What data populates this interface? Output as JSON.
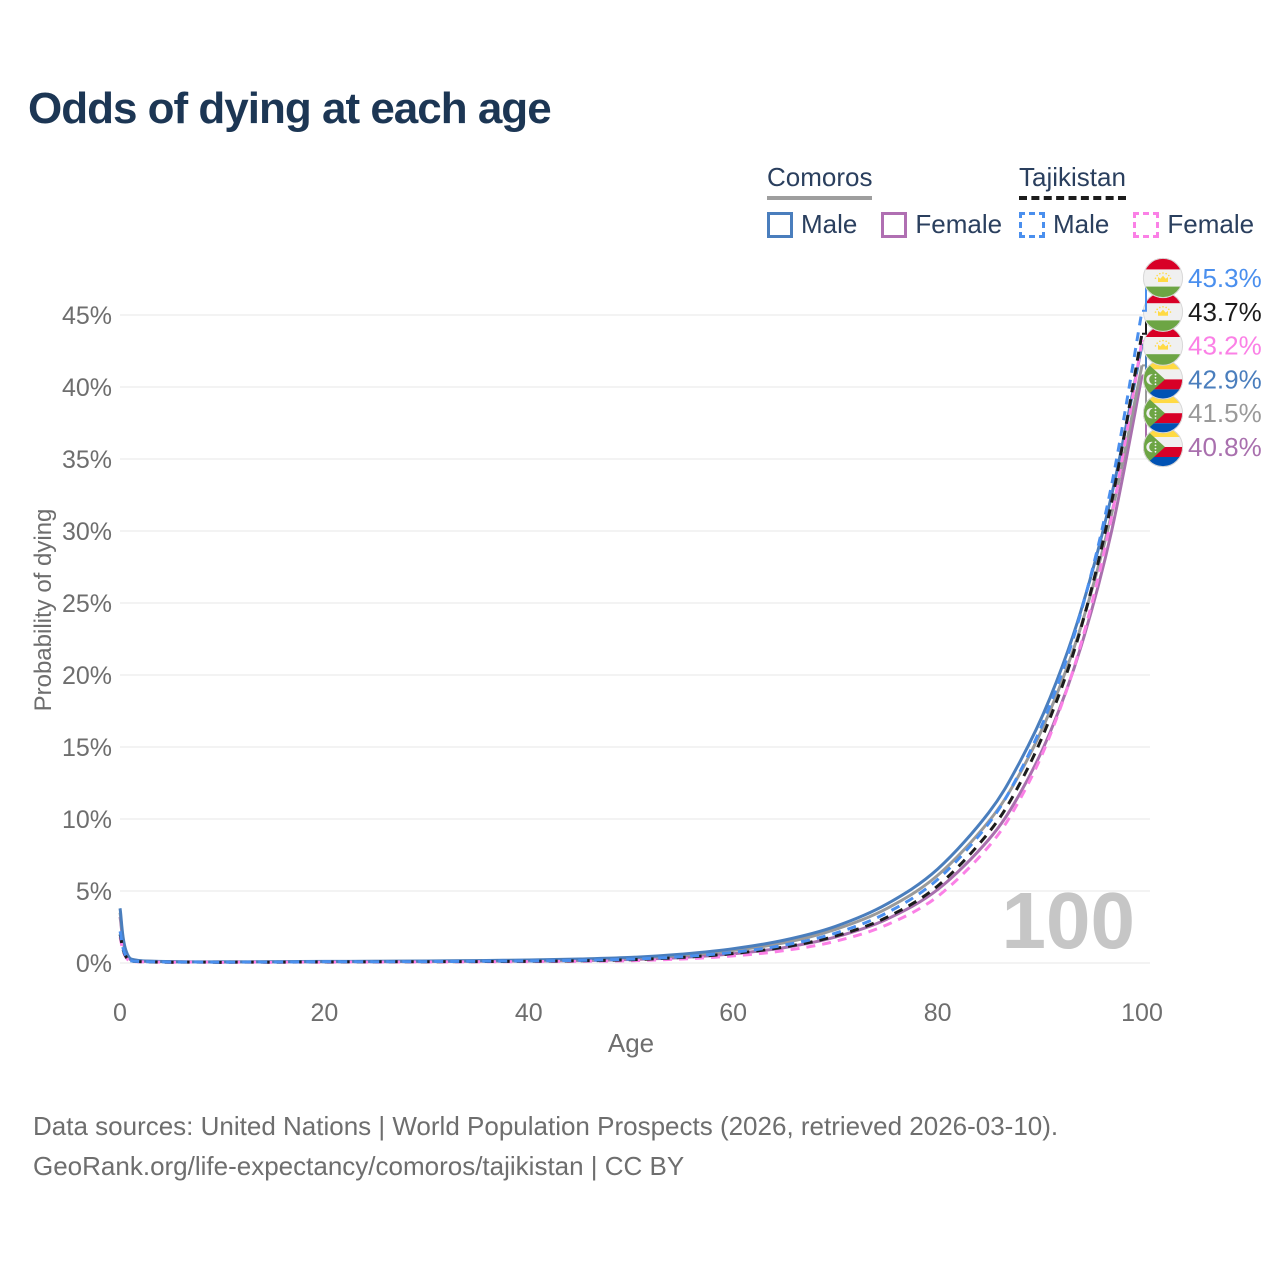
{
  "page": {
    "title": "Odds of dying at each age",
    "background": "#ffffff"
  },
  "legend": {
    "groups": [
      {
        "country": "Comoros",
        "line_style": "solid",
        "underline_color": "#9e9e9e",
        "items": [
          {
            "label": "Male",
            "color": "#4a7ebd"
          },
          {
            "label": "Female",
            "color": "#b06fb2"
          }
        ]
      },
      {
        "country": "Tajikistan",
        "line_style": "dashed",
        "underline_color": "#1c1c1c",
        "items": [
          {
            "label": "Male",
            "color": "#4a8fee"
          },
          {
            "label": "Female",
            "color": "#fb80e6"
          }
        ]
      }
    ]
  },
  "chart_data": {
    "type": "line",
    "title": "Odds of dying at each age",
    "xlabel": "Age",
    "ylabel": "Probability of dying",
    "xlim": [
      0,
      100
    ],
    "ylim": [
      0,
      47
    ],
    "xticks": [
      0,
      20,
      40,
      60,
      80,
      100
    ],
    "yticks": [
      0,
      5,
      10,
      15,
      20,
      25,
      30,
      35,
      40,
      45
    ],
    "ytick_suffix": "%",
    "grid": true,
    "legend_position": "top-right",
    "hover_age_label": "100",
    "series": [
      {
        "name": "Tajikistan — Male",
        "country": "Tajikistan",
        "sex": "Male",
        "color": "#4a8fee",
        "dashed": true,
        "flag": "tajikistan",
        "end_label": "45.3%",
        "end_value": 45.3,
        "points": [
          [
            0,
            2.2
          ],
          [
            1,
            0.16
          ],
          [
            5,
            0.06
          ],
          [
            10,
            0.05
          ],
          [
            15,
            0.06
          ],
          [
            20,
            0.08
          ],
          [
            25,
            0.09
          ],
          [
            30,
            0.1
          ],
          [
            35,
            0.12
          ],
          [
            40,
            0.14
          ],
          [
            45,
            0.18
          ],
          [
            50,
            0.27
          ],
          [
            55,
            0.44
          ],
          [
            60,
            0.74
          ],
          [
            65,
            1.24
          ],
          [
            70,
            2.07
          ],
          [
            75,
            3.47
          ],
          [
            80,
            5.8
          ],
          [
            85,
            9.69
          ],
          [
            88,
            13.2
          ],
          [
            91,
            17.9
          ],
          [
            94,
            24.3
          ],
          [
            97,
            33.1
          ],
          [
            100,
            45.3
          ]
        ]
      },
      {
        "name": "Tajikistan — Both sexes",
        "country": "Tajikistan",
        "sex": "Both",
        "color": "#1c1c1c",
        "dashed": true,
        "flag": "tajikistan",
        "end_label": "43.7%",
        "end_value": 43.7,
        "points": [
          [
            0,
            2.0
          ],
          [
            1,
            0.14
          ],
          [
            5,
            0.05
          ],
          [
            10,
            0.04
          ],
          [
            15,
            0.05
          ],
          [
            20,
            0.07
          ],
          [
            25,
            0.08
          ],
          [
            30,
            0.09
          ],
          [
            35,
            0.1
          ],
          [
            40,
            0.12
          ],
          [
            45,
            0.15
          ],
          [
            50,
            0.23
          ],
          [
            55,
            0.39
          ],
          [
            60,
            0.66
          ],
          [
            65,
            1.11
          ],
          [
            70,
            1.87
          ],
          [
            75,
            3.16
          ],
          [
            80,
            5.35
          ],
          [
            85,
            9.06
          ],
          [
            88,
            12.4
          ],
          [
            91,
            17.0
          ],
          [
            94,
            23.2
          ],
          [
            97,
            31.9
          ],
          [
            100,
            43.7
          ]
        ]
      },
      {
        "name": "Tajikistan — Female",
        "country": "Tajikistan",
        "sex": "Female",
        "color": "#fb80e6",
        "dashed": true,
        "flag": "tajikistan",
        "end_label": "43.2%",
        "end_value": 43.2,
        "points": [
          [
            0,
            1.8
          ],
          [
            1,
            0.12
          ],
          [
            5,
            0.04
          ],
          [
            10,
            0.04
          ],
          [
            15,
            0.04
          ],
          [
            20,
            0.05
          ],
          [
            25,
            0.06
          ],
          [
            30,
            0.07
          ],
          [
            35,
            0.08
          ],
          [
            40,
            0.1
          ],
          [
            45,
            0.12
          ],
          [
            50,
            0.16
          ],
          [
            55,
            0.28
          ],
          [
            60,
            0.49
          ],
          [
            65,
            0.86
          ],
          [
            70,
            1.51
          ],
          [
            75,
            2.64
          ],
          [
            80,
            4.62
          ],
          [
            85,
            8.09
          ],
          [
            88,
            11.3
          ],
          [
            91,
            15.8
          ],
          [
            94,
            22.1
          ],
          [
            97,
            30.9
          ],
          [
            100,
            43.2
          ]
        ]
      },
      {
        "name": "Comoros — Male",
        "country": "Comoros",
        "sex": "Male",
        "color": "#4a7ebd",
        "dashed": false,
        "flag": "comoros",
        "end_label": "42.9%",
        "end_value": 42.9,
        "points": [
          [
            0,
            3.8
          ],
          [
            1,
            0.3
          ],
          [
            5,
            0.1
          ],
          [
            10,
            0.08
          ],
          [
            15,
            0.09
          ],
          [
            20,
            0.11
          ],
          [
            25,
            0.12
          ],
          [
            30,
            0.14
          ],
          [
            35,
            0.17
          ],
          [
            40,
            0.21
          ],
          [
            45,
            0.28
          ],
          [
            50,
            0.39
          ],
          [
            55,
            0.62
          ],
          [
            60,
            0.99
          ],
          [
            65,
            1.59
          ],
          [
            70,
            2.54
          ],
          [
            75,
            4.08
          ],
          [
            80,
            6.52
          ],
          [
            85,
            10.44
          ],
          [
            88,
            13.9
          ],
          [
            91,
            18.4
          ],
          [
            94,
            24.4
          ],
          [
            97,
            32.4
          ],
          [
            100,
            42.9
          ]
        ]
      },
      {
        "name": "Comoros — Both sexes",
        "country": "Comoros",
        "sex": "Both",
        "color": "#9a9a9a",
        "dashed": false,
        "flag": "comoros",
        "end_label": "41.5%",
        "end_value": 41.5,
        "points": [
          [
            0,
            3.5
          ],
          [
            1,
            0.27
          ],
          [
            5,
            0.09
          ],
          [
            10,
            0.07
          ],
          [
            15,
            0.08
          ],
          [
            20,
            0.1
          ],
          [
            25,
            0.11
          ],
          [
            30,
            0.13
          ],
          [
            35,
            0.15
          ],
          [
            40,
            0.18
          ],
          [
            45,
            0.22
          ],
          [
            50,
            0.34
          ],
          [
            55,
            0.54
          ],
          [
            60,
            0.87
          ],
          [
            65,
            1.4
          ],
          [
            70,
            2.33
          ],
          [
            75,
            3.77
          ],
          [
            80,
            6.08
          ],
          [
            85,
            9.83
          ],
          [
            88,
            13.1
          ],
          [
            91,
            17.5
          ],
          [
            94,
            23.3
          ],
          [
            97,
            31.1
          ],
          [
            100,
            41.5
          ]
        ]
      },
      {
        "name": "Comoros — Female",
        "country": "Comoros",
        "sex": "Female",
        "color": "#a970ae",
        "dashed": false,
        "flag": "comoros",
        "end_label": "40.8%",
        "end_value": 40.8,
        "points": [
          [
            0,
            3.2
          ],
          [
            1,
            0.24
          ],
          [
            5,
            0.08
          ],
          [
            10,
            0.06
          ],
          [
            15,
            0.07
          ],
          [
            20,
            0.08
          ],
          [
            25,
            0.09
          ],
          [
            30,
            0.1
          ],
          [
            35,
            0.12
          ],
          [
            40,
            0.14
          ],
          [
            45,
            0.17
          ],
          [
            50,
            0.24
          ],
          [
            55,
            0.38
          ],
          [
            60,
            0.64
          ],
          [
            65,
            1.07
          ],
          [
            70,
            1.8
          ],
          [
            75,
            3.03
          ],
          [
            80,
            5.1
          ],
          [
            85,
            8.57
          ],
          [
            88,
            11.7
          ],
          [
            91,
            16.0
          ],
          [
            94,
            21.9
          ],
          [
            97,
            29.9
          ],
          [
            100,
            40.8
          ]
        ]
      }
    ]
  },
  "footer": {
    "line1": "Data sources: United Nations | World Population Prospects (2026, retrieved 2026-03-10).",
    "line2": "GeoRank.org/life-expectancy/comoros/tajikistan | CC BY"
  }
}
